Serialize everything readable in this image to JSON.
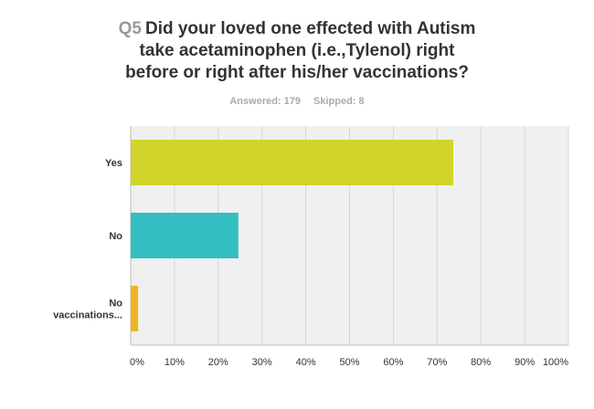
{
  "question": {
    "number": "Q5",
    "text_lines": [
      "Did your loved one effected with Autism",
      "take acetaminophen (i.e.,Tylenol) right",
      "before or right after his/her vaccinations?"
    ]
  },
  "stats": {
    "answered": "Answered: 179",
    "skipped": "Skipped: 8"
  },
  "chart_data": {
    "type": "bar",
    "orientation": "horizontal",
    "categories": [
      [
        "Yes"
      ],
      [
        "No"
      ],
      [
        "No",
        "vaccinations..."
      ]
    ],
    "values": [
      73.7,
      24.6,
      1.7
    ],
    "xlim": [
      0,
      100
    ],
    "xticks": [
      "0%",
      "10%",
      "20%",
      "30%",
      "40%",
      "50%",
      "60%",
      "70%",
      "80%",
      "90%",
      "100%"
    ],
    "colors": [
      "#d0d42b",
      "#33bfc1",
      "#f0b323"
    ],
    "grid": true,
    "background": "#f0f0f0"
  }
}
